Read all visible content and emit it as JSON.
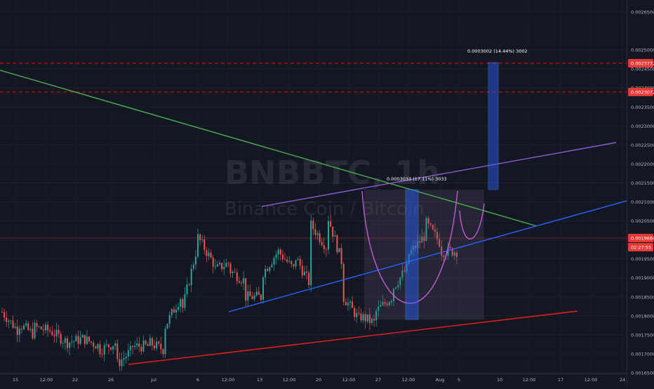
{
  "chart_data": {
    "type": "candlestick",
    "watermark": {
      "symbol": "BNBBTC, 1h",
      "name": "Binance Coin / Bitcoin"
    },
    "y_axis": {
      "range": [
        0.00164,
        0.00262
      ],
      "ticks": [
        "0.0026500",
        "0.0025000",
        "0.0024500",
        "0.0024000",
        "0.0023500",
        "0.0023000",
        "0.0022500",
        "0.0022000",
        "0.0021500",
        "0.0021000",
        "0.0020500",
        "0.0020000",
        "0.0019500",
        "0.0019000",
        "0.0018500",
        "0.0018000",
        "0.0017500",
        "0.0017000",
        "0.0016500"
      ]
    },
    "x_axis": {
      "ticks": [
        "15",
        "12:00",
        "22",
        "26",
        "Jul",
        "6",
        "12:00",
        "13",
        "12:00",
        "20",
        "12:00",
        "27",
        "12:00",
        "Aug",
        "5",
        "10",
        "12:00",
        "17",
        "12:00",
        "24"
      ]
    },
    "price_labels": [
      {
        "value": "0.0023772",
        "color": "#e53935"
      },
      {
        "value": "0.0023072",
        "color": "#e53935"
      },
      {
        "value": "0.0019660",
        "color": "#e53935"
      },
      {
        "value": "02:27:55",
        "color": "#e53935"
      }
    ],
    "measure_labels": [
      "0.0003002 (14.44%) 3002",
      "0.0003033 (17.11%) 3033"
    ],
    "colors": {
      "up": "#26a69a",
      "down": "#ef5350",
      "resistance": "#ff0000",
      "green_line": "#4caf50",
      "purple_line": "#8e5bd6",
      "blue_line": "#2962ff",
      "red_line": "#f01e1e",
      "cup": "#c45bd6",
      "measure": "#2962ff"
    },
    "price_path": [
      [
        0.00181,
        0.00176
      ],
      [
        0.00178,
        0.00175
      ],
      [
        0.00177,
        0.00176
      ],
      [
        0.00176,
        0.00173
      ],
      [
        0.00173,
        0.00174
      ],
      [
        0.00174,
        0.00172
      ],
      [
        0.00171,
        0.00173
      ],
      [
        0.00167,
        0.00171
      ],
      [
        0.00172,
        0.00172
      ],
      [
        0.00173,
        0.00171
      ],
      [
        0.00177,
        0.00185
      ],
      [
        0.0018,
        0.00198
      ],
      [
        0.00201,
        0.00194
      ],
      [
        0.00192,
        0.00194
      ],
      [
        0.00192,
        0.00189
      ],
      [
        0.00185,
        0.00185
      ],
      [
        0.00191,
        0.00197
      ],
      [
        0.00197,
        0.00192
      ],
      [
        0.00196,
        0.00188
      ],
      [
        0.00204,
        0.00198
      ],
      [
        0.00207,
        0.00193
      ],
      [
        0.00185,
        0.00179
      ],
      [
        0.0018,
        0.00178
      ],
      [
        0.00181,
        0.00185
      ],
      [
        0.00187,
        0.00193
      ],
      [
        0.00196,
        0.00201
      ],
      [
        0.00205,
        0.00199
      ],
      [
        0.00197,
        0.00197
      ]
    ]
  }
}
